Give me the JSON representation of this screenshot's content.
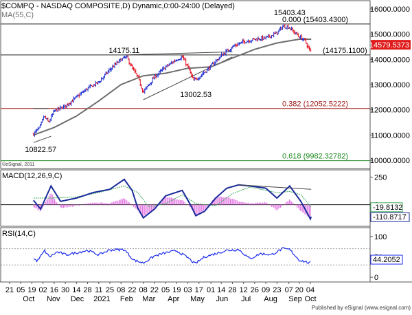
{
  "header": {
    "title": "$COMPQ - NASDAQ COMPOSITE,D) Dynamic,0:00-24:00 (Delayed)",
    "ma_label": "MA(55,C)",
    "watermark": "©eSignal, 2011",
    "footer": "Published by eSignal (www.esignal.com)"
  },
  "colors": {
    "price_up": "#1f2fd0",
    "price_down": "#e0101e",
    "ma": "#6e6e6e",
    "macd_line": "#1a2a9a",
    "signal_line": "#3fae5a",
    "histogram": "#e070e0",
    "rsi_line": "#1a2aee",
    "fib_zero": "#222222",
    "fib_382": "#a01818",
    "fib_618": "#1f8a1f",
    "price_tag_bg": "#e01b1b",
    "panel_border": "#555555"
  },
  "chart_data": [
    {
      "type": "candlestick",
      "title": "$COMPQ - NASDAQ COMPOSITE,D) Dynamic,0:00-24:00 (Delayed)",
      "ylim": [
        9700,
        16300
      ],
      "y_ticks": [
        "16000.0000",
        "15000.0000",
        "14000.0000",
        "13000.0000",
        "12000.0000",
        "11000.0000",
        "10000.0000"
      ],
      "y_tick_values": [
        16000,
        15000,
        14000,
        13000,
        12000,
        11000,
        10000
      ],
      "last_price": "14579.5373",
      "last_value": 14579.5373,
      "series": [
        {
          "name": "MA(55,C)",
          "kind": "moving-average"
        }
      ],
      "price_path": [
        [
          "2020-10-21",
          11050
        ],
        [
          "2020-10-29",
          11300
        ],
        [
          "2020-11-03",
          11750
        ],
        [
          "2020-11-09",
          11500
        ],
        [
          "2020-11-16",
          11950
        ],
        [
          "2020-11-30",
          12150
        ],
        [
          "2020-12-14",
          12500
        ],
        [
          "2020-12-28",
          12850
        ],
        [
          "2021-01-11",
          13100
        ],
        [
          "2021-01-25",
          13600
        ],
        [
          "2021-02-08",
          14000
        ],
        [
          "2021-02-15",
          14100
        ],
        [
          "2021-02-22",
          13650
        ],
        [
          "2021-03-01",
          13300
        ],
        [
          "2021-03-08",
          12700
        ],
        [
          "2021-03-22",
          13300
        ],
        [
          "2021-04-05",
          13700
        ],
        [
          "2021-04-19",
          14000
        ],
        [
          "2021-04-26",
          14100
        ],
        [
          "2021-05-03",
          13700
        ],
        [
          "2021-05-10",
          13150
        ],
        [
          "2021-05-17",
          13300
        ],
        [
          "2021-05-31",
          13700
        ],
        [
          "2021-06-14",
          14150
        ],
        [
          "2021-06-28",
          14500
        ],
        [
          "2021-07-12",
          14700
        ],
        [
          "2021-07-26",
          14800
        ],
        [
          "2021-08-09",
          14850
        ],
        [
          "2021-08-23",
          15050
        ],
        [
          "2021-08-30",
          15300
        ],
        [
          "2021-09-06",
          15300
        ],
        [
          "2021-09-13",
          15100
        ],
        [
          "2021-09-20",
          14900
        ],
        [
          "2021-09-27",
          14750
        ],
        [
          "2021-10-04",
          14300
        ],
        [
          "2021-10-05",
          14500
        ]
      ],
      "ma_path": [
        [
          "2020-10-21",
          11000
        ],
        [
          "2020-11-16",
          11300
        ],
        [
          "2020-12-14",
          11750
        ],
        [
          "2021-01-11",
          12350
        ],
        [
          "2021-02-08",
          13000
        ],
        [
          "2021-03-08",
          13350
        ],
        [
          "2021-04-05",
          13450
        ],
        [
          "2021-05-03",
          13650
        ],
        [
          "2021-06-01",
          13700
        ],
        [
          "2021-06-28",
          14050
        ],
        [
          "2021-07-26",
          14400
        ],
        [
          "2021-08-23",
          14650
        ],
        [
          "2021-09-20",
          14800
        ],
        [
          "2021-10-05",
          14800
        ]
      ],
      "horizontal_levels": [
        {
          "label": "0.000 (15403.4300)",
          "value": 15403.43
        },
        {
          "label": "(14175.1100)",
          "value": 14175.11
        },
        {
          "label": "0.382 (12052.5222)",
          "value": 12052.5222
        },
        {
          "label": "0.618 (9982.32782)",
          "value": 9982.32782
        }
      ],
      "annotations": [
        {
          "text": "15403.43",
          "date": "2021-09-08",
          "value": 15403.43
        },
        {
          "text": "14175.11",
          "date": "2021-02-12",
          "value": 14175.11
        },
        {
          "text": "13002.53",
          "date": "2021-05-13",
          "value": 13002.53
        },
        {
          "text": "10822.57",
          "date": "2020-10-30",
          "value": 10822.57
        }
      ],
      "trendlines": [
        {
          "from": [
            "2021-02-12",
            14175.11
          ],
          "to": [
            "2021-06-28",
            14300
          ]
        },
        {
          "from": [
            "2021-03-08",
            12400
          ],
          "to": [
            "2021-06-28",
            14100
          ]
        },
        {
          "from": [
            "2020-10-21",
            10700
          ],
          "to": [
            "2020-11-12",
            10950
          ]
        },
        {
          "from": [
            "2020-10-21",
            12052.5
          ],
          "to": [
            "2020-11-09",
            12052.5
          ]
        }
      ]
    },
    {
      "type": "line",
      "title": "MACD(12,26,9,C)",
      "ylim": [
        -190,
        310
      ],
      "y_ticks": [
        "250",
        "0"
      ],
      "y_tick_values": [
        250,
        0
      ],
      "series": [
        {
          "name": "MACD",
          "last": "-110.8717",
          "points": [
            [
              "2020-10-21",
              40
            ],
            [
              "2020-10-30",
              -40
            ],
            [
              "2020-11-12",
              170
            ],
            [
              "2020-11-24",
              30
            ],
            [
              "2020-12-14",
              60
            ],
            [
              "2021-01-04",
              110
            ],
            [
              "2021-01-25",
              140
            ],
            [
              "2021-02-12",
              230
            ],
            [
              "2021-02-22",
              130
            ],
            [
              "2021-03-01",
              -30
            ],
            [
              "2021-03-08",
              -120
            ],
            [
              "2021-03-22",
              -40
            ],
            [
              "2021-04-05",
              80
            ],
            [
              "2021-04-26",
              130
            ],
            [
              "2021-05-07",
              -10
            ],
            [
              "2021-05-13",
              -100
            ],
            [
              "2021-05-24",
              -60
            ],
            [
              "2021-06-07",
              60
            ],
            [
              "2021-06-21",
              150
            ],
            [
              "2021-07-06",
              180
            ],
            [
              "2021-07-20",
              170
            ],
            [
              "2021-08-09",
              150
            ],
            [
              "2021-08-23",
              60
            ],
            [
              "2021-09-08",
              170
            ],
            [
              "2021-09-22",
              30
            ],
            [
              "2021-10-04",
              -130
            ],
            [
              "2021-10-05",
              -110
            ]
          ]
        },
        {
          "name": "Signal",
          "last": "-19.8132",
          "points": [
            [
              "2020-10-21",
              60
            ],
            [
              "2020-11-12",
              60
            ],
            [
              "2020-12-14",
              70
            ],
            [
              "2021-01-11",
              110
            ],
            [
              "2021-02-12",
              170
            ],
            [
              "2021-03-01",
              110
            ],
            [
              "2021-03-15",
              -20
            ],
            [
              "2021-04-05",
              10
            ],
            [
              "2021-04-26",
              90
            ],
            [
              "2021-05-13",
              10
            ],
            [
              "2021-06-07",
              -10
            ],
            [
              "2021-06-28",
              100
            ],
            [
              "2021-07-20",
              160
            ],
            [
              "2021-08-23",
              110
            ],
            [
              "2021-09-08",
              120
            ],
            [
              "2021-09-22",
              90
            ],
            [
              "2021-10-05",
              -20
            ]
          ]
        },
        {
          "name": "Histogram",
          "points": [
            [
              "2020-10-21",
              -20
            ],
            [
              "2020-10-30",
              -60
            ],
            [
              "2020-11-12",
              110
            ],
            [
              "2020-11-24",
              -30
            ],
            [
              "2020-12-14",
              -10
            ],
            [
              "2021-01-04",
              20
            ],
            [
              "2021-01-25",
              10
            ],
            [
              "2021-02-12",
              60
            ],
            [
              "2021-02-22",
              0
            ],
            [
              "2021-03-08",
              -110
            ],
            [
              "2021-03-22",
              -40
            ],
            [
              "2021-04-05",
              70
            ],
            [
              "2021-04-26",
              40
            ],
            [
              "2021-05-07",
              -30
            ],
            [
              "2021-05-13",
              -100
            ],
            [
              "2021-05-24",
              -50
            ],
            [
              "2021-06-07",
              70
            ],
            [
              "2021-06-21",
              70
            ],
            [
              "2021-07-06",
              30
            ],
            [
              "2021-07-20",
              10
            ],
            [
              "2021-08-09",
              20
            ],
            [
              "2021-08-23",
              -50
            ],
            [
              "2021-09-08",
              50
            ],
            [
              "2021-09-22",
              -60
            ],
            [
              "2021-10-04",
              -120
            ],
            [
              "2021-10-05",
              -90
            ]
          ]
        }
      ],
      "trendline": {
        "from": [
          "2021-07-06",
          180
        ],
        "to": [
          "2021-10-05",
          140
        ]
      }
    },
    {
      "type": "line",
      "title": "RSI(14,C)",
      "ylim": [
        -10,
        120
      ],
      "y_ticks": [
        "100",
        "50",
        "0"
      ],
      "y_tick_values": [
        100,
        50,
        0
      ],
      "reference_lines": [
        70,
        30
      ],
      "series": [
        {
          "name": "RSI",
          "last": "44.2052",
          "points": [
            [
              "2020-10-21",
              45
            ],
            [
              "2020-10-26",
              40
            ],
            [
              "2020-11-04",
              65
            ],
            [
              "2020-11-10",
              50
            ],
            [
              "2020-11-20",
              62
            ],
            [
              "2020-12-01",
              55
            ],
            [
              "2020-12-14",
              60
            ],
            [
              "2020-12-28",
              66
            ],
            [
              "2021-01-11",
              55
            ],
            [
              "2021-01-25",
              67
            ],
            [
              "2021-02-12",
              68
            ],
            [
              "2021-02-24",
              42
            ],
            [
              "2021-03-08",
              35
            ],
            [
              "2021-03-22",
              52
            ],
            [
              "2021-04-05",
              60
            ],
            [
              "2021-04-19",
              65
            ],
            [
              "2021-05-03",
              48
            ],
            [
              "2021-05-12",
              33
            ],
            [
              "2021-05-24",
              50
            ],
            [
              "2021-06-07",
              58
            ],
            [
              "2021-06-21",
              66
            ],
            [
              "2021-07-06",
              68
            ],
            [
              "2021-07-20",
              45
            ],
            [
              "2021-08-02",
              58
            ],
            [
              "2021-08-16",
              55
            ],
            [
              "2021-08-30",
              70
            ],
            [
              "2021-09-08",
              68
            ],
            [
              "2021-09-20",
              42
            ],
            [
              "2021-09-28",
              38
            ],
            [
              "2021-10-04",
              34
            ],
            [
              "2021-10-05",
              44
            ]
          ]
        }
      ]
    }
  ],
  "x_axis": {
    "ticks": [
      {
        "label": "21",
        "date": "2020-09-21"
      },
      {
        "label": "05",
        "date": "2020-10-05"
      },
      {
        "label": "19",
        "date": "2020-10-19"
      },
      {
        "label": "02",
        "date": "2020-11-02"
      },
      {
        "label": "16",
        "date": "2020-11-16"
      },
      {
        "label": "30",
        "date": "2020-11-30"
      },
      {
        "label": "14",
        "date": "2020-12-14"
      },
      {
        "label": "28",
        "date": "2020-12-28"
      },
      {
        "label": "11",
        "date": "2021-01-11"
      },
      {
        "label": "25",
        "date": "2021-01-25"
      },
      {
        "label": "08",
        "date": "2021-02-08"
      },
      {
        "label": "22",
        "date": "2021-02-22"
      },
      {
        "label": "08",
        "date": "2021-03-08"
      },
      {
        "label": "22",
        "date": "2021-03-22"
      },
      {
        "label": "05",
        "date": "2021-04-05"
      },
      {
        "label": "19",
        "date": "2021-04-19"
      },
      {
        "label": "03",
        "date": "2021-05-03"
      },
      {
        "label": "17",
        "date": "2021-05-17"
      },
      {
        "label": "01",
        "date": "2021-06-01"
      },
      {
        "label": "14",
        "date": "2021-06-14"
      },
      {
        "label": "28",
        "date": "2021-06-28"
      },
      {
        "label": "12",
        "date": "2021-07-12"
      },
      {
        "label": "26",
        "date": "2021-07-26"
      },
      {
        "label": "09",
        "date": "2021-08-09"
      },
      {
        "label": "23",
        "date": "2021-08-23"
      },
      {
        "label": "07",
        "date": "2021-09-07"
      },
      {
        "label": "20",
        "date": "2021-09-20"
      },
      {
        "label": "04",
        "date": "2021-10-04"
      }
    ],
    "months": [
      {
        "label": "Oct",
        "date": "2020-10-01"
      },
      {
        "label": "Nov",
        "date": "2020-11-01"
      },
      {
        "label": "Dec",
        "date": "2020-12-01"
      },
      {
        "label": "2021",
        "date": "2021-01-01"
      },
      {
        "label": "Feb",
        "date": "2021-02-01"
      },
      {
        "label": "Mar",
        "date": "2021-03-01"
      },
      {
        "label": "Apr",
        "date": "2021-04-01"
      },
      {
        "label": "May",
        "date": "2021-05-01"
      },
      {
        "label": "Jun",
        "date": "2021-06-01"
      },
      {
        "label": "Jul",
        "date": "2021-07-01"
      },
      {
        "label": "Aug",
        "date": "2021-08-01"
      },
      {
        "label": "Sep",
        "date": "2021-09-01"
      },
      {
        "label": "Oct",
        "date": "2021-10-01"
      }
    ]
  }
}
